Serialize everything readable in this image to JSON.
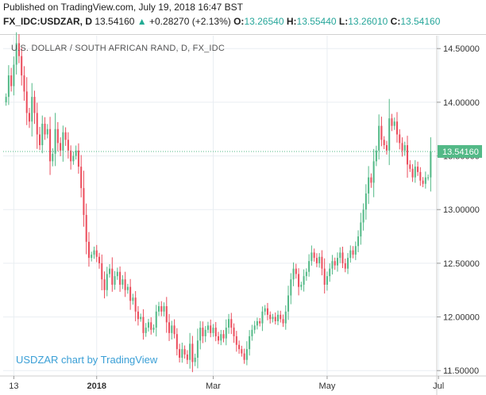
{
  "header": {
    "published": "Published on TradingView.com, July 19, 2018 16:47 BST",
    "symbol": "FX_IDC:USDZAR, D",
    "last": "13.54160",
    "arrow": "▲",
    "change": "+0.28270 (+2.13%)",
    "o_label": "O:",
    "o_value": "13.26540",
    "h_label": "H:",
    "h_value": "13.55440",
    "l_label": "L:",
    "l_value": "13.26010",
    "c_label": "C:",
    "c_value": "13.54160"
  },
  "colors": {
    "up": "#53b987",
    "down": "#eb4d5c",
    "grid": "#e9eef2",
    "price_line": "#53b987"
  },
  "chart_data": {
    "type": "candlestick",
    "title": "U.S. DOLLAR / SOUTH AFRICAN RAND, D, FX_IDC",
    "credit": "USDZAR chart by TradingView",
    "ylim": [
      11.45,
      14.62
    ],
    "y_ticks": [
      "14.50000",
      "14.00000",
      "13.50000",
      "13.00000",
      "12.50000",
      "12.00000",
      "11.50000"
    ],
    "y_tick_values": [
      14.5,
      14.0,
      13.5,
      13.0,
      12.5,
      12.0,
      11.5
    ],
    "x_ticks": [
      {
        "label": "13",
        "index": 3,
        "bold": false
      },
      {
        "label": "2018",
        "index": 35,
        "bold": true
      },
      {
        "label": "Mar",
        "index": 80,
        "bold": false
      },
      {
        "label": "May",
        "index": 124,
        "bold": false
      },
      {
        "label": "Jul",
        "index": 167,
        "bold": false
      }
    ],
    "last_price": 13.5416,
    "last_price_label": "13.54160",
    "closes": [
      14.05,
      14.25,
      14.15,
      14.35,
      14.55,
      14.43,
      14.25,
      14.1,
      13.9,
      13.82,
      14.05,
      13.9,
      13.7,
      13.6,
      13.8,
      13.7,
      13.75,
      13.45,
      13.52,
      13.75,
      13.62,
      13.55,
      13.72,
      13.65,
      13.55,
      13.45,
      13.5,
      13.55,
      13.4,
      13.2,
      12.95,
      12.7,
      12.55,
      12.58,
      12.62,
      12.56,
      12.5,
      12.35,
      12.25,
      12.4,
      12.45,
      12.3,
      12.38,
      12.42,
      12.3,
      12.35,
      12.25,
      12.28,
      12.15,
      12.18,
      12.05,
      11.98,
      12.0,
      11.85,
      11.9,
      11.95,
      11.88,
      11.9,
      12.05,
      12.1,
      12.05,
      12.1,
      11.95,
      11.85,
      11.92,
      11.84,
      11.7,
      11.62,
      11.7,
      11.65,
      11.6,
      11.75,
      11.58,
      11.62,
      11.78,
      11.9,
      11.82,
      11.88,
      11.92,
      11.85,
      11.9,
      11.82,
      11.78,
      11.84,
      11.8,
      11.9,
      11.98,
      11.9,
      11.82,
      11.74,
      11.7,
      11.66,
      11.6,
      11.7,
      11.82,
      11.88,
      11.92,
      11.96,
      11.94,
      12.05,
      12.08,
      12.02,
      11.98,
      12.0,
      11.96,
      12.02,
      11.98,
      11.94,
      12.05,
      12.2,
      12.35,
      12.45,
      12.4,
      12.28,
      12.3,
      12.38,
      12.42,
      12.52,
      12.6,
      12.55,
      12.5,
      12.56,
      12.45,
      12.3,
      12.38,
      12.45,
      12.52,
      12.48,
      12.55,
      12.6,
      12.5,
      12.45,
      12.55,
      12.62,
      12.58,
      12.66,
      12.75,
      12.88,
      13.0,
      13.15,
      13.3,
      13.25,
      13.45,
      13.55,
      13.78,
      13.65,
      13.6,
      13.55,
      13.85,
      13.78,
      13.82,
      13.7,
      13.62,
      13.55,
      13.6,
      13.42,
      13.38,
      13.3,
      13.4,
      13.35,
      13.27,
      13.24,
      13.3,
      13.3,
      13.54
    ]
  },
  "watermark": ""
}
